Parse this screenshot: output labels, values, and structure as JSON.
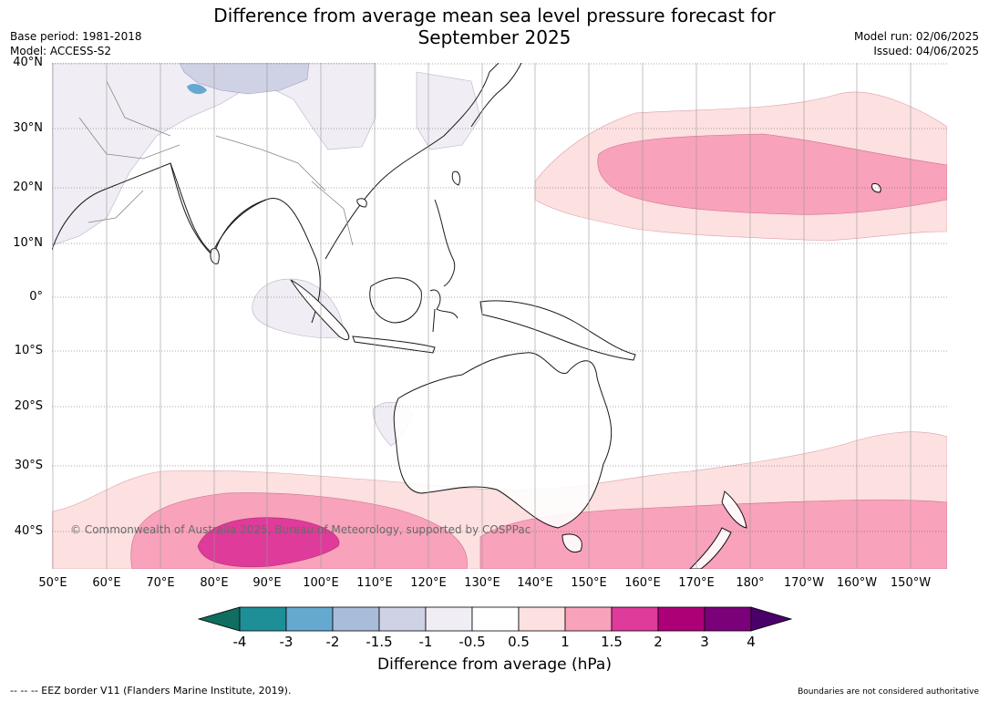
{
  "title_line1": "Difference from average mean sea level pressure forecast for",
  "title_line2": "September 2025",
  "base_period": "Base period: 1981-2018",
  "model": "Model: ACCESS-S2",
  "model_run": "Model run: 02/06/2025",
  "issued": "Issued: 04/06/2025",
  "copyright": "© Commonwealth of Australia 2025, Bureau of Meteorology, supported by COSPPac",
  "lat_labels": [
    "40°N",
    "30°N",
    "20°N",
    "10°N",
    "0°",
    "10°S",
    "20°S",
    "30°S",
    "40°S"
  ],
  "lon_labels": [
    "50°E",
    "60°E",
    "70°E",
    "80°E",
    "90°E",
    "100°E",
    "110°E",
    "120°E",
    "130°E",
    "140°E",
    "150°E",
    "160°E",
    "170°E",
    "180°",
    "170°W",
    "160°W",
    "150°W"
  ],
  "colorbar": {
    "ticks": [
      "-4",
      "-3",
      "-2",
      "-1.5",
      "-1",
      "-0.5",
      "0.5",
      "1",
      "1.5",
      "2",
      "3",
      "4"
    ],
    "colors": [
      "#0f6e5f",
      "#1e8f97",
      "#66a9d0",
      "#a9bcd9",
      "#cfd1e5",
      "#f1edf4",
      "#ffffff",
      "#fde0e0",
      "#f8a2bb",
      "#de3b9a",
      "#ad0078",
      "#7a017a",
      "#4a0068"
    ],
    "label": "Difference from average (hPa)"
  },
  "footer_left": "--  --  -- EEZ border V11 (Flanders Marine Institute, 2019).",
  "footer_right": "Boundaries are not considered authoritative"
}
